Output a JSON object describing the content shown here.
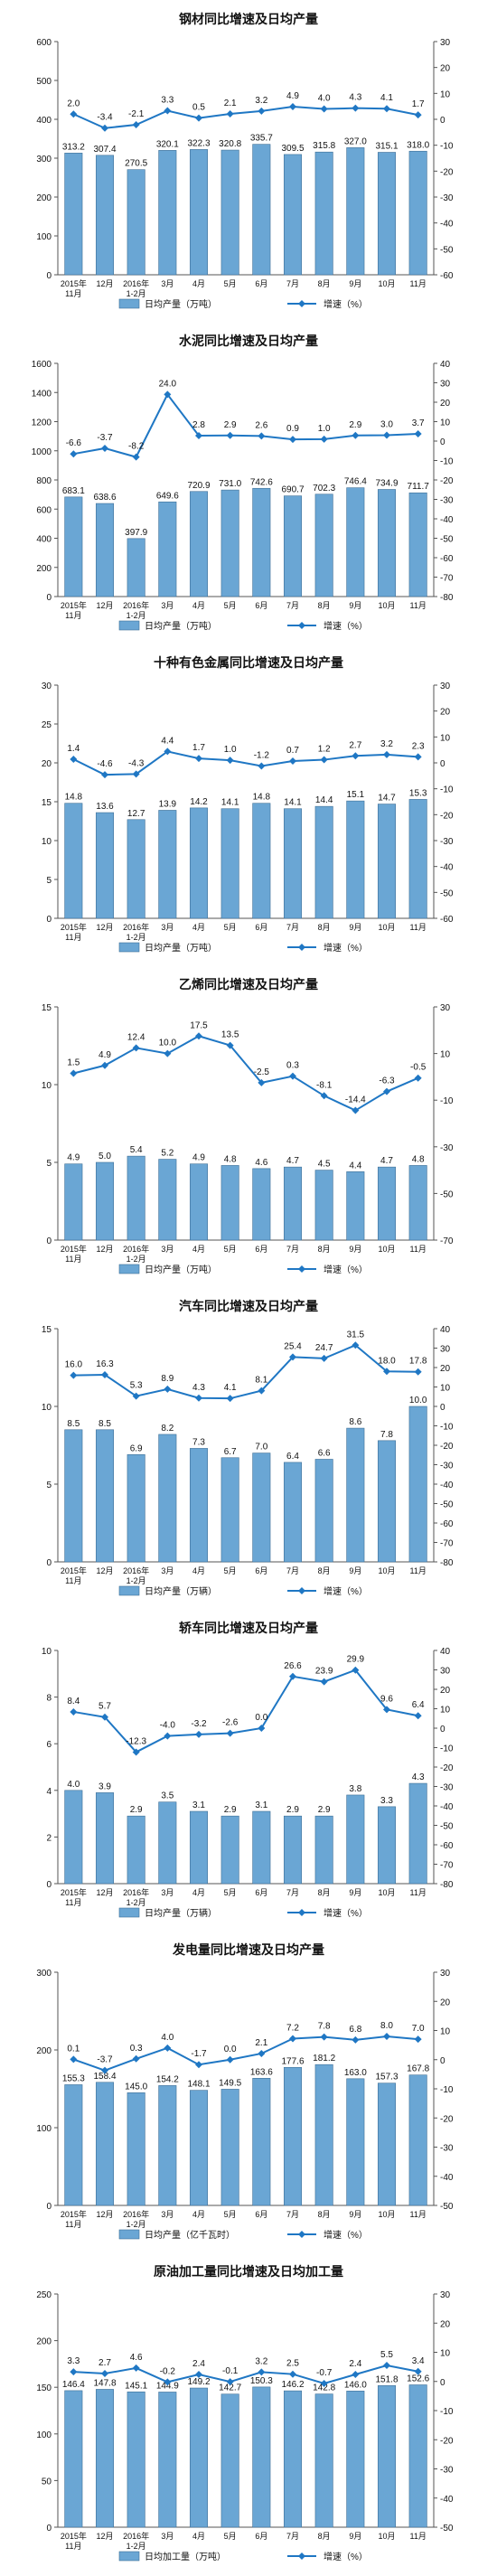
{
  "colors": {
    "bar": "#6aa6d4",
    "bar_edge": "#3e6f96",
    "line": "#1f77c4",
    "axis": "#555555",
    "text": "#111111"
  },
  "chart_data": [
    {
      "type": "bar",
      "title": "钢材同比增速及日均产量",
      "categories": [
        "2015年\n11月",
        "12月",
        "2016年\n1-2月",
        "3月",
        "4月",
        "5月",
        "6月",
        "7月",
        "8月",
        "9月",
        "10月",
        "11月"
      ],
      "series": [
        {
          "name": "日均产量（万吨）",
          "type": "bar",
          "axis": "left",
          "values": [
            313.2,
            307.4,
            270.5,
            320.1,
            322.3,
            320.8,
            335.7,
            309.5,
            315.8,
            327.0,
            315.1,
            318.0
          ]
        },
        {
          "name": "增速（%）",
          "type": "line",
          "axis": "right",
          "values": [
            2.0,
            -3.4,
            -2.1,
            3.3,
            0.5,
            2.1,
            3.2,
            4.9,
            4.0,
            4.3,
            4.1,
            1.7
          ]
        }
      ],
      "ylim": [
        0,
        600
      ],
      "yticks": [
        0,
        100,
        200,
        300,
        400,
        500,
        600
      ],
      "y2lim": [
        -60,
        30
      ],
      "y2ticks": [
        -60,
        -50,
        -40,
        -30,
        -20,
        -10,
        0,
        10,
        20,
        30
      ]
    },
    {
      "type": "bar",
      "title": "水泥同比增速及日均产量",
      "categories": [
        "2015年\n11月",
        "12月",
        "2016年\n1-2月",
        "3月",
        "4月",
        "5月",
        "6月",
        "7月",
        "8月",
        "9月",
        "10月",
        "11月"
      ],
      "series": [
        {
          "name": "日均产量（万吨）",
          "type": "bar",
          "axis": "left",
          "values": [
            683.1,
            638.6,
            397.9,
            649.6,
            720.9,
            731.0,
            742.6,
            690.7,
            702.3,
            746.4,
            734.9,
            711.7
          ]
        },
        {
          "name": "增速（%）",
          "type": "line",
          "axis": "right",
          "values": [
            -6.6,
            -3.7,
            -8.2,
            24.0,
            2.8,
            2.9,
            2.6,
            0.9,
            1.0,
            2.9,
            3.0,
            3.7
          ]
        }
      ],
      "ylim": [
        0,
        1600
      ],
      "yticks": [
        0,
        200,
        400,
        600,
        800,
        1000,
        1200,
        1400,
        1600
      ],
      "y2lim": [
        -80,
        40
      ],
      "y2ticks": [
        -80,
        -70,
        -60,
        -50,
        -40,
        -30,
        -20,
        -10,
        0,
        10,
        20,
        30,
        40
      ]
    },
    {
      "type": "bar",
      "title": "十种有色金属同比增速及日均产量",
      "categories": [
        "2015年\n11月",
        "12月",
        "2016年\n1-2月",
        "3月",
        "4月",
        "5月",
        "6月",
        "7月",
        "8月",
        "9月",
        "10月",
        "11月"
      ],
      "series": [
        {
          "name": "日均产量（万吨）",
          "type": "bar",
          "axis": "left",
          "values": [
            14.8,
            13.6,
            12.7,
            13.9,
            14.2,
            14.1,
            14.8,
            14.1,
            14.4,
            15.1,
            14.7,
            15.3
          ]
        },
        {
          "name": "增速（%）",
          "type": "line",
          "axis": "right",
          "values": [
            1.4,
            -4.6,
            -4.3,
            4.4,
            1.7,
            1.0,
            -1.2,
            0.7,
            1.2,
            2.7,
            3.2,
            2.3
          ]
        }
      ],
      "ylim": [
        0,
        30
      ],
      "yticks": [
        0,
        5,
        10,
        15,
        20,
        25,
        30
      ],
      "y2lim": [
        -60,
        30
      ],
      "y2ticks": [
        -60,
        -50,
        -40,
        -30,
        -20,
        -10,
        0,
        10,
        20,
        30
      ]
    },
    {
      "type": "bar",
      "title": "乙烯同比增速及日均产量",
      "categories": [
        "2015年\n11月",
        "12月",
        "2016年\n1-2月",
        "3月",
        "4月",
        "5月",
        "6月",
        "7月",
        "8月",
        "9月",
        "10月",
        "11月"
      ],
      "series": [
        {
          "name": "日均产量（万吨）",
          "type": "bar",
          "axis": "left",
          "values": [
            4.9,
            5.0,
            5.4,
            5.2,
            4.9,
            4.8,
            4.6,
            4.7,
            4.5,
            4.4,
            4.7,
            4.8
          ]
        },
        {
          "name": "增速（%）",
          "type": "line",
          "axis": "right",
          "values": [
            1.5,
            4.9,
            12.4,
            10.0,
            17.5,
            13.5,
            -2.5,
            0.3,
            -8.1,
            -14.4,
            -6.3,
            -0.5
          ]
        }
      ],
      "ylim": [
        0,
        15
      ],
      "yticks": [
        0,
        5,
        10,
        15
      ],
      "y2lim": [
        -70,
        30
      ],
      "y2ticks": [
        -70,
        -50,
        -30,
        -10,
        10,
        30
      ]
    },
    {
      "type": "bar",
      "title": "汽车同比增速及日均产量",
      "categories": [
        "2015年\n11月",
        "12月",
        "2016年\n1-2月",
        "3月",
        "4月",
        "5月",
        "6月",
        "7月",
        "8月",
        "9月",
        "10月",
        "11月"
      ],
      "series": [
        {
          "name": "日均产量（万辆）",
          "type": "bar",
          "axis": "left",
          "values": [
            8.5,
            8.5,
            6.9,
            8.2,
            7.3,
            6.7,
            7.0,
            6.4,
            6.6,
            8.6,
            7.8,
            10.0
          ]
        },
        {
          "name": "增速（%）",
          "type": "line",
          "axis": "right",
          "values": [
            16.0,
            16.3,
            5.3,
            8.9,
            4.3,
            4.1,
            8.1,
            25.4,
            24.7,
            31.5,
            18.0,
            17.8
          ]
        }
      ],
      "ylim": [
        0,
        15
      ],
      "yticks": [
        0,
        5,
        10,
        15
      ],
      "y2lim": [
        -80,
        40
      ],
      "y2ticks": [
        -80,
        -70,
        -60,
        -50,
        -40,
        -30,
        -20,
        -10,
        0,
        10,
        20,
        30,
        40
      ]
    },
    {
      "type": "bar",
      "title": "轿车同比增速及日均产量",
      "categories": [
        "2015年\n11月",
        "12月",
        "2016年\n1-2月",
        "3月",
        "4月",
        "5月",
        "6月",
        "7月",
        "8月",
        "9月",
        "10月",
        "11月"
      ],
      "series": [
        {
          "name": "日均产量（万辆）",
          "type": "bar",
          "axis": "left",
          "values": [
            4.0,
            3.9,
            2.9,
            3.5,
            3.1,
            2.9,
            3.1,
            2.9,
            2.9,
            3.8,
            3.3,
            4.3
          ]
        },
        {
          "name": "增速（%）",
          "type": "line",
          "axis": "right",
          "values": [
            8.4,
            5.7,
            -12.3,
            -4.0,
            -3.2,
            -2.6,
            0.0,
            26.6,
            23.9,
            29.9,
            9.6,
            6.4
          ]
        }
      ],
      "ylim": [
        0,
        10
      ],
      "yticks": [
        0,
        2,
        4,
        6,
        8,
        10
      ],
      "y2lim": [
        -80,
        40
      ],
      "y2ticks": [
        -80,
        -70,
        -60,
        -50,
        -40,
        -30,
        -20,
        -10,
        0,
        10,
        20,
        30,
        40
      ]
    },
    {
      "type": "bar",
      "title": "发电量同比增速及日均产量",
      "categories": [
        "2015年\n11月",
        "12月",
        "2016年\n1-2月",
        "3月",
        "4月",
        "5月",
        "6月",
        "7月",
        "8月",
        "9月",
        "10月",
        "11月"
      ],
      "series": [
        {
          "name": "日均产量（亿千瓦时）",
          "type": "bar",
          "axis": "left",
          "values": [
            155.3,
            158.4,
            145.0,
            154.2,
            148.1,
            149.5,
            163.6,
            177.6,
            181.2,
            163.0,
            157.3,
            167.8
          ]
        },
        {
          "name": "增速（%）",
          "type": "line",
          "axis": "right",
          "values": [
            0.1,
            -3.7,
            0.3,
            4.0,
            -1.7,
            0.0,
            2.1,
            7.2,
            7.8,
            6.8,
            8.0,
            7.0
          ]
        }
      ],
      "ylim": [
        0,
        300
      ],
      "yticks": [
        0,
        100,
        200,
        300
      ],
      "y2lim": [
        -50,
        30
      ],
      "y2ticks": [
        -50,
        -40,
        -30,
        -20,
        -10,
        0,
        10,
        20,
        30
      ]
    },
    {
      "type": "bar",
      "title": "原油加工量同比增速及日均加工量",
      "categories": [
        "2015年\n11月",
        "12月",
        "2016年\n1-2月",
        "3月",
        "4月",
        "5月",
        "6月",
        "7月",
        "8月",
        "9月",
        "10月",
        "11月"
      ],
      "series": [
        {
          "name": "日均加工量（万吨）",
          "type": "bar",
          "axis": "left",
          "values": [
            146.4,
            147.8,
            145.1,
            144.9,
            149.2,
            142.7,
            150.3,
            146.2,
            142.8,
            146.0,
            151.8,
            152.6
          ]
        },
        {
          "name": "增速（%）",
          "type": "line",
          "axis": "right",
          "values": [
            3.3,
            2.7,
            4.6,
            -0.2,
            2.4,
            -0.1,
            3.2,
            2.5,
            -0.7,
            2.4,
            5.5,
            3.4
          ]
        }
      ],
      "ylim": [
        0,
        250
      ],
      "yticks": [
        0,
        50,
        100,
        150,
        200,
        250
      ],
      "y2lim": [
        -50,
        30
      ],
      "y2ticks": [
        -50,
        -40,
        -30,
        -20,
        -10,
        0,
        10,
        20,
        30
      ]
    }
  ]
}
